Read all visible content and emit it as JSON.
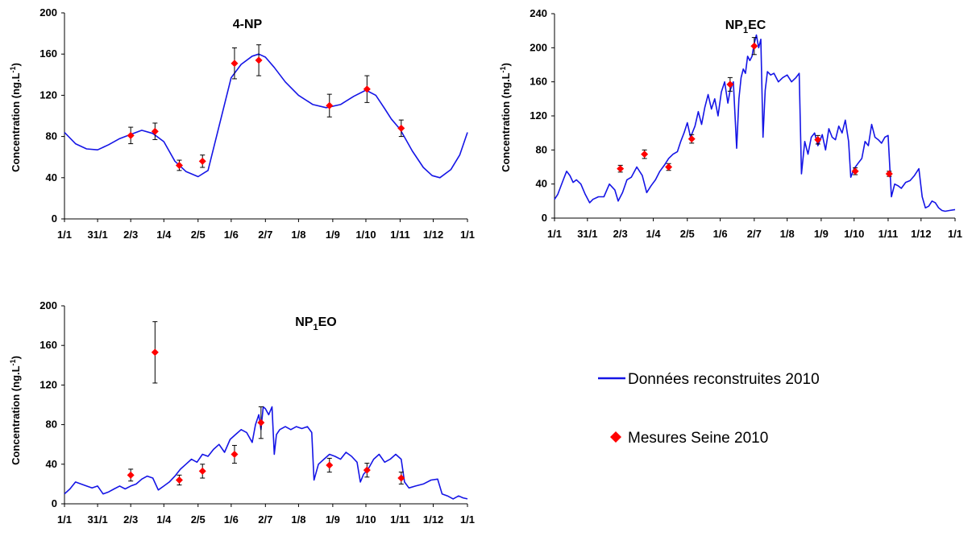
{
  "colors": {
    "line": "#1515e6",
    "marker": "#ff0000",
    "axis": "#000000",
    "errorbar": "#000000"
  },
  "legend": {
    "line_label": "Données reconstruites 2010",
    "marker_label": "Mesures Seine 2010",
    "placement": "right"
  },
  "chart_data": [
    {
      "type": "line",
      "title_main": "4-NP",
      "title_sub": "",
      "title_end": "",
      "ylabel_main": "Concentration (ng.L",
      "ylabel_sup": "-1",
      "ylabel_end": ")",
      "xlabel": "",
      "ylim": [
        0,
        200
      ],
      "yticks": [
        0,
        40,
        80,
        120,
        160,
        200
      ],
      "xlim": [
        0,
        365
      ],
      "xticks": [
        {
          "day": 0,
          "label": "1/1"
        },
        {
          "day": 30,
          "label": "31/1"
        },
        {
          "day": 60,
          "label": "2/3"
        },
        {
          "day": 90,
          "label": "1/4"
        },
        {
          "day": 121,
          "label": "2/5"
        },
        {
          "day": 151,
          "label": "1/6"
        },
        {
          "day": 182,
          "label": "2/7"
        },
        {
          "day": 212,
          "label": "1/8"
        },
        {
          "day": 243,
          "label": "1/9"
        },
        {
          "day": 273,
          "label": "1/10"
        },
        {
          "day": 304,
          "label": "1/11"
        },
        {
          "day": 334,
          "label": "1/12"
        },
        {
          "day": 365,
          "label": "1/1"
        }
      ],
      "grid": false,
      "series": [
        {
          "kind": "line",
          "x": [
            0,
            10,
            20,
            30,
            40,
            50,
            60,
            70,
            80,
            90,
            100,
            110,
            121,
            130,
            140,
            151,
            160,
            170,
            176,
            182,
            190,
            200,
            212,
            225,
            237,
            250,
            262,
            273,
            282,
            290,
            296,
            304,
            315,
            325,
            333,
            340,
            350,
            358,
            365
          ],
          "y": [
            84,
            73,
            68,
            67,
            72,
            78,
            82,
            86,
            83,
            75,
            56,
            46,
            41,
            47,
            90,
            137,
            150,
            158,
            160,
            157,
            147,
            133,
            120,
            111,
            108,
            111,
            119,
            125,
            120,
            107,
            97,
            87,
            66,
            50,
            42,
            40,
            48,
            62,
            84
          ]
        },
        {
          "kind": "points",
          "x": [
            60,
            82,
            104,
            125,
            154,
            176,
            240,
            274,
            305
          ],
          "y": [
            81,
            85,
            52,
            56,
            151,
            154,
            110,
            126,
            88
          ],
          "err": [
            8,
            8,
            5,
            6,
            15,
            15,
            11,
            13,
            8
          ]
        }
      ]
    },
    {
      "type": "line",
      "title_main": "NP",
      "title_sub": "1",
      "title_end": "EC",
      "ylabel_main": "Concentration (ng.L",
      "ylabel_sup": "-1",
      "ylabel_end": ")",
      "xlabel": "",
      "ylim": [
        0,
        240
      ],
      "yticks": [
        0,
        40,
        80,
        120,
        160,
        200,
        240
      ],
      "xlim": [
        0,
        365
      ],
      "xticks": [
        {
          "day": 0,
          "label": "1/1"
        },
        {
          "day": 30,
          "label": "31/1"
        },
        {
          "day": 60,
          "label": "2/3"
        },
        {
          "day": 90,
          "label": "1/4"
        },
        {
          "day": 121,
          "label": "2/5"
        },
        {
          "day": 151,
          "label": "1/6"
        },
        {
          "day": 182,
          "label": "2/7"
        },
        {
          "day": 212,
          "label": "1/8"
        },
        {
          "day": 243,
          "label": "1/9"
        },
        {
          "day": 273,
          "label": "1/10"
        },
        {
          "day": 304,
          "label": "1/11"
        },
        {
          "day": 334,
          "label": "1/12"
        },
        {
          "day": 365,
          "label": "1/1"
        }
      ],
      "grid": false,
      "series": [
        {
          "kind": "line",
          "x": [
            0,
            3,
            8,
            11,
            14,
            17,
            20,
            24,
            28,
            32,
            35,
            40,
            45,
            50,
            55,
            58,
            62,
            66,
            70,
            75,
            80,
            84,
            88,
            92,
            96,
            100,
            104,
            108,
            112,
            115,
            118,
            121,
            124,
            128,
            131,
            134,
            137,
            140,
            143,
            146,
            149,
            152,
            155,
            158,
            160,
            163,
            166,
            168,
            170,
            172,
            174,
            176,
            178,
            180,
            182,
            184,
            186,
            188,
            190,
            192,
            194,
            197,
            200,
            204,
            208,
            212,
            216,
            220,
            223,
            225,
            228,
            231,
            234,
            237,
            240,
            244,
            247,
            250,
            253,
            256,
            259,
            262,
            265,
            268,
            270,
            273,
            277,
            280,
            283,
            286,
            289,
            292,
            295,
            298,
            301,
            304,
            307,
            310,
            313,
            316,
            320,
            324,
            328,
            332,
            335,
            338,
            341,
            344,
            347,
            350,
            353,
            356,
            360,
            365
          ],
          "y": [
            22,
            28,
            45,
            55,
            50,
            42,
            45,
            40,
            28,
            18,
            22,
            25,
            25,
            40,
            33,
            20,
            30,
            45,
            48,
            60,
            50,
            30,
            38,
            45,
            55,
            62,
            70,
            75,
            78,
            90,
            100,
            112,
            95,
            108,
            125,
            110,
            130,
            145,
            128,
            140,
            120,
            148,
            160,
            135,
            150,
            160,
            82,
            140,
            165,
            175,
            170,
            190,
            185,
            190,
            205,
            215,
            200,
            210,
            95,
            150,
            172,
            168,
            170,
            160,
            165,
            168,
            160,
            165,
            170,
            52,
            90,
            75,
            95,
            100,
            85,
            98,
            80,
            105,
            95,
            92,
            108,
            100,
            115,
            90,
            48,
            58,
            65,
            70,
            90,
            85,
            110,
            95,
            92,
            88,
            95,
            97,
            25,
            40,
            38,
            35,
            42,
            44,
            50,
            58,
            25,
            12,
            14,
            20,
            18,
            12,
            9,
            8,
            9,
            10
          ]
        },
        {
          "kind": "points",
          "x": [
            60,
            82,
            104,
            125,
            160,
            182,
            240,
            274,
            305
          ],
          "y": [
            58,
            75,
            60,
            93,
            157,
            202,
            92,
            55,
            52
          ],
          "err": [
            4,
            5,
            4,
            5,
            8,
            10,
            5,
            4,
            3
          ]
        }
      ]
    },
    {
      "type": "line",
      "title_main": "NP",
      "title_sub": "1",
      "title_end": "EO",
      "ylabel_main": "Concentration (ng.L",
      "ylabel_sup": "-1",
      "ylabel_end": ")",
      "xlabel": "",
      "ylim": [
        0,
        200
      ],
      "yticks": [
        0,
        40,
        80,
        120,
        160,
        200
      ],
      "xlim": [
        0,
        365
      ],
      "xticks": [
        {
          "day": 0,
          "label": "1/1"
        },
        {
          "day": 30,
          "label": "31/1"
        },
        {
          "day": 60,
          "label": "2/3"
        },
        {
          "day": 90,
          "label": "1/4"
        },
        {
          "day": 121,
          "label": "2/5"
        },
        {
          "day": 151,
          "label": "1/6"
        },
        {
          "day": 182,
          "label": "2/7"
        },
        {
          "day": 212,
          "label": "1/8"
        },
        {
          "day": 243,
          "label": "1/9"
        },
        {
          "day": 273,
          "label": "1/10"
        },
        {
          "day": 304,
          "label": "1/11"
        },
        {
          "day": 334,
          "label": "1/12"
        },
        {
          "day": 365,
          "label": "1/1"
        }
      ],
      "grid": false,
      "series": [
        {
          "kind": "line",
          "x": [
            0,
            5,
            10,
            15,
            20,
            25,
            30,
            35,
            40,
            45,
            50,
            55,
            60,
            65,
            70,
            75,
            80,
            85,
            90,
            95,
            100,
            105,
            110,
            115,
            120,
            125,
            130,
            135,
            140,
            145,
            150,
            155,
            160,
            165,
            170,
            173,
            176,
            178,
            180,
            182,
            185,
            188,
            190,
            192,
            195,
            200,
            205,
            210,
            215,
            220,
            224,
            226,
            230,
            235,
            240,
            245,
            250,
            255,
            260,
            265,
            268,
            271,
            275,
            280,
            285,
            290,
            295,
            300,
            305,
            308,
            312,
            318,
            325,
            332,
            338,
            342,
            347,
            352,
            357,
            361,
            365
          ],
          "y": [
            10,
            15,
            22,
            20,
            18,
            16,
            18,
            10,
            12,
            15,
            18,
            15,
            18,
            20,
            25,
            28,
            26,
            14,
            18,
            22,
            28,
            35,
            40,
            45,
            42,
            50,
            48,
            55,
            60,
            52,
            65,
            70,
            75,
            72,
            62,
            80,
            90,
            75,
            98,
            96,
            90,
            98,
            50,
            70,
            75,
            78,
            75,
            78,
            76,
            78,
            72,
            24,
            40,
            45,
            50,
            48,
            45,
            52,
            48,
            42,
            22,
            30,
            35,
            45,
            50,
            42,
            45,
            50,
            45,
            22,
            16,
            18,
            20,
            24,
            25,
            10,
            8,
            5,
            8,
            6,
            5
          ]
        },
        {
          "kind": "points",
          "x": [
            60,
            82,
            104,
            125,
            154,
            178,
            240,
            274,
            305
          ],
          "y": [
            29,
            153,
            24,
            33,
            50,
            82,
            39,
            34,
            26
          ],
          "err": [
            6,
            31,
            5,
            7,
            9,
            16,
            7,
            7,
            6
          ]
        }
      ]
    }
  ]
}
